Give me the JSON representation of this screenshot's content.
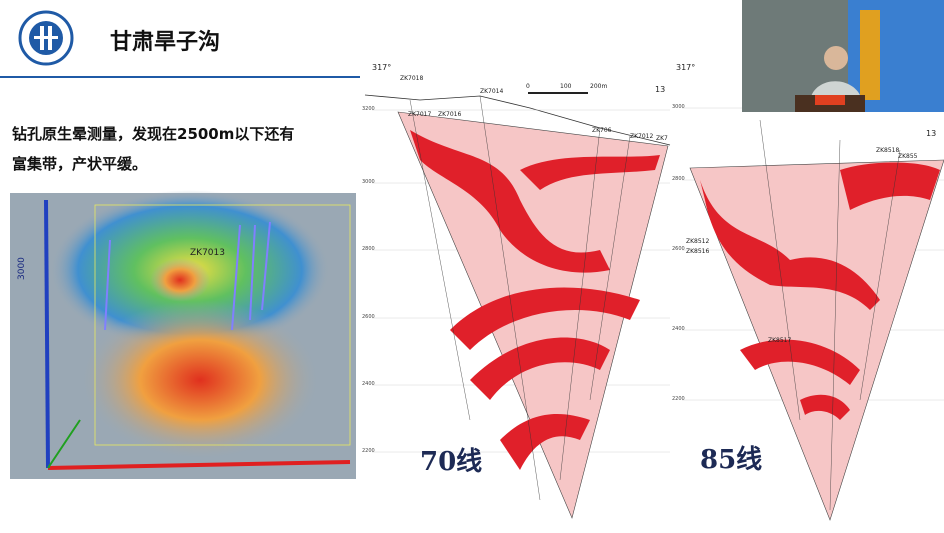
{
  "header": {
    "title": "甘肃旱子沟"
  },
  "body": {
    "lines": [
      "钻孔原生晕测量，发现在2500m以下还有",
      "富集带，产状平缓。"
    ]
  },
  "model_3d": {
    "drill_labels": [
      "ZK7013"
    ],
    "axis_labels": [
      "3000"
    ]
  },
  "sections": [
    {
      "label": "70线",
      "azimuth": "317°",
      "line_no": "13",
      "holes": [
        "ZK7018",
        "ZK7014",
        "ZK7017",
        "ZK7016",
        "ZK706",
        "ZK7012",
        "ZK7"
      ],
      "scale": [
        "0",
        "100",
        "200m"
      ],
      "elevations": [
        "3200",
        "3000",
        "2800",
        "2600",
        "2400",
        "2200"
      ]
    },
    {
      "label": "85线",
      "azimuth": "317°",
      "line_no": "13",
      "holes": [
        "ZK8518",
        "ZK855",
        "ZK8512",
        "ZK8516",
        "ZK8517"
      ],
      "elevations": [
        "3000",
        "2800",
        "2600",
        "2400",
        "2200"
      ]
    }
  ]
}
